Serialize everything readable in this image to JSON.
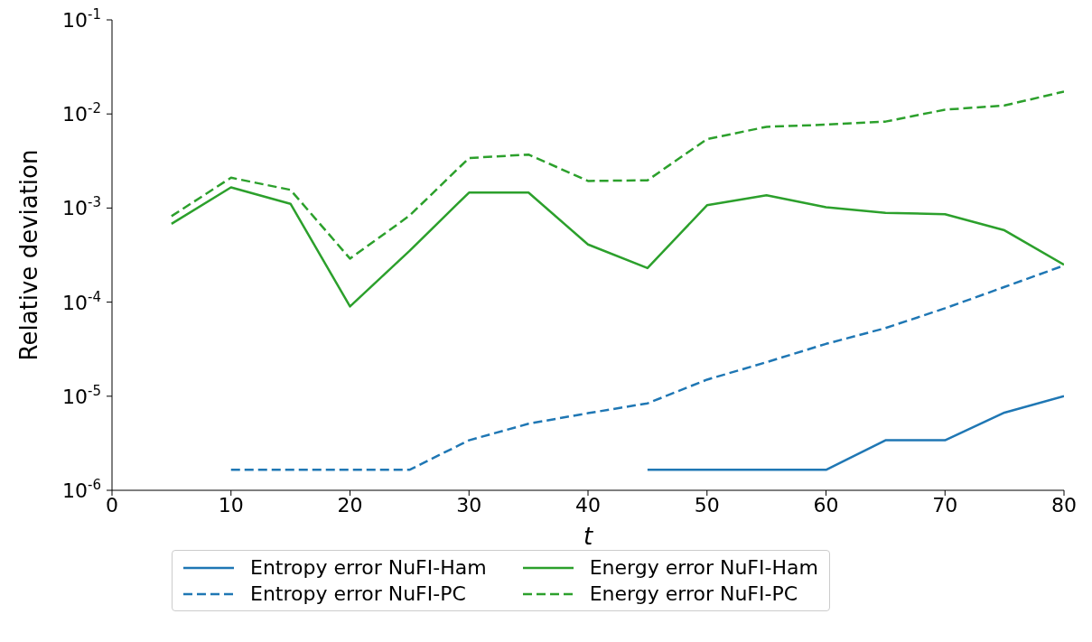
{
  "chart_data": {
    "type": "line",
    "xlabel": "t",
    "ylabel": "Relative deviation",
    "x": [
      5,
      10,
      15,
      20,
      25,
      30,
      35,
      40,
      45,
      50,
      55,
      60,
      65,
      70,
      75,
      80
    ],
    "series": [
      {
        "name": "Entropy error NuFI-Ham",
        "color": "#1f77b4",
        "line_style": "solid",
        "values": [
          null,
          null,
          null,
          null,
          null,
          null,
          null,
          null,
          1.65e-06,
          1.65e-06,
          1.65e-06,
          1.65e-06,
          3.4e-06,
          3.4e-06,
          6.7e-06,
          1e-05
        ]
      },
      {
        "name": "Entropy error NuFI-PC",
        "color": "#1f77b4",
        "line_style": "dashed",
        "values": [
          null,
          1.65e-06,
          1.65e-06,
          1.65e-06,
          1.65e-06,
          3.4e-06,
          5.1e-06,
          6.6e-06,
          8.4e-06,
          1.5e-05,
          2.3e-05,
          3.6e-05,
          5.3e-05,
          8.6e-05,
          0.000145,
          0.000245
        ]
      },
      {
        "name": "Energy error NuFI-Ham",
        "color": "#2ca02c",
        "line_style": "solid",
        "values": [
          0.00068,
          0.00166,
          0.00111,
          9e-05,
          0.00035,
          0.00146,
          0.00146,
          0.00041,
          0.00023,
          0.00107,
          0.00137,
          0.00102,
          0.00089,
          0.00086,
          0.00058,
          0.00025
        ]
      },
      {
        "name": "Energy error NuFI-PC",
        "color": "#2ca02c",
        "line_style": "dashed",
        "values": [
          0.00082,
          0.0021,
          0.00156,
          0.00029,
          0.00083,
          0.0034,
          0.0037,
          0.00194,
          0.00197,
          0.0054,
          0.0073,
          0.0077,
          0.0083,
          0.0111,
          0.0123,
          0.0173
        ]
      }
    ],
    "xlim": [
      0,
      80
    ],
    "xticks": [
      0,
      10,
      20,
      30,
      40,
      50,
      60,
      70,
      80
    ],
    "ylim": [
      1e-06,
      0.1
    ],
    "yticks": [
      {
        "value": 1e-06,
        "label": "10$^{-6}$"
      },
      {
        "value": 1e-05,
        "label": "10$^{-5}$"
      },
      {
        "value": 0.0001,
        "label": "10$^{-4}$"
      },
      {
        "value": 0.001,
        "label": "10$^{-3}$"
      },
      {
        "value": 0.01,
        "label": "10$^{-2}$"
      },
      {
        "value": 0.1,
        "label": "10$^{-1}$"
      }
    ],
    "log": "y",
    "grid": false,
    "legend": "bottom",
    "marker": "none"
  }
}
